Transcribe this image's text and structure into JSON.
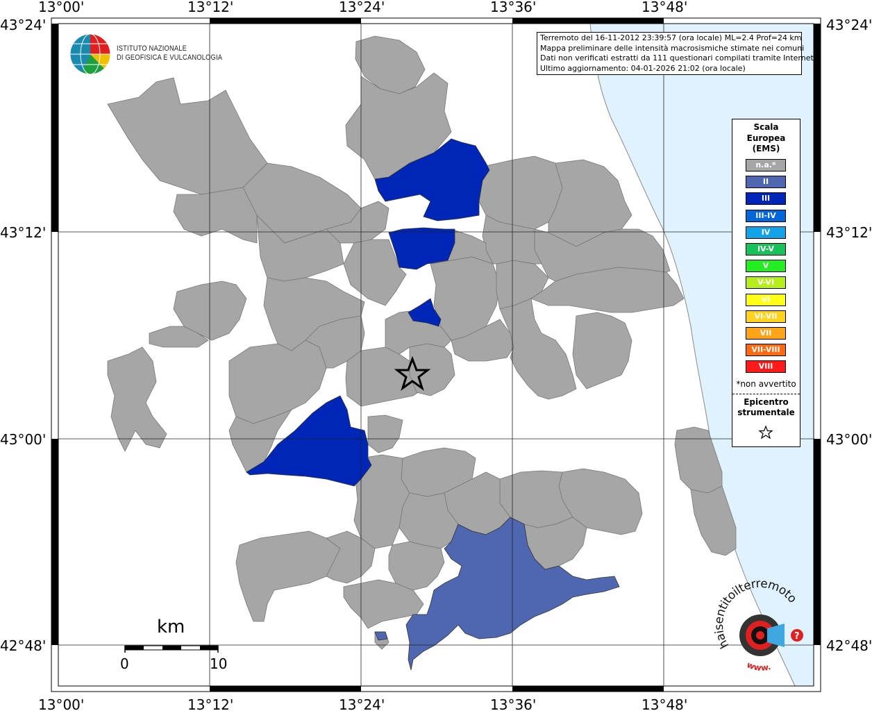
{
  "axes": {
    "lon_labels": [
      "13°00'",
      "13°12'",
      "13°24'",
      "13°36'",
      "13°48'"
    ],
    "lat_labels": [
      "43°24'",
      "43°12'",
      "43°00'",
      "42°48'"
    ]
  },
  "institute": {
    "line1": "ISTITUTO NAZIONALE",
    "line2": "DI GEOFISICA E VULCANOLOGIA"
  },
  "info": {
    "line1": "Terremoto del 16-11-2012 23:39:57 (ora locale) ML=2.4 Prof=24 km",
    "line2": "Mappa preliminare delle intensità macrosismiche stimate nei comuni",
    "line3": "Dati non verificati estratti da 111 questionari compilati tramite Internet.",
    "line4": "Ultimo aggiornamento: 04-01-2026 21:02 (ora locale)"
  },
  "legend": {
    "title_line1": "Scala",
    "title_line2": "Europea",
    "title_line3": "(EMS)",
    "items": [
      {
        "label": "n.a.*",
        "color": "#a6a6a6"
      },
      {
        "label": "II",
        "color": "#4f66b0"
      },
      {
        "label": "III",
        "color": "#0026b8"
      },
      {
        "label": "III-IV",
        "color": "#0066d9"
      },
      {
        "label": "IV",
        "color": "#13a3e8"
      },
      {
        "label": "IV-V",
        "color": "#18c25a"
      },
      {
        "label": "V",
        "color": "#22ee22"
      },
      {
        "label": "V-VI",
        "color": "#b5ee19"
      },
      {
        "label": "VI",
        "color": "#ffff19"
      },
      {
        "label": "VI-VII",
        "color": "#ffd21e"
      },
      {
        "label": "VII",
        "color": "#ffa319"
      },
      {
        "label": "VII-VIII",
        "color": "#ff6a10"
      },
      {
        "label": "VIII",
        "color": "#ff1a1a"
      }
    ],
    "note": "*non avvertito",
    "epicenter_line1": "Epicentro",
    "epicenter_line2": "strumentale"
  },
  "scale_bar": {
    "unit": "km",
    "start": "0",
    "end": "10"
  },
  "colors": {
    "sea": "#e0f2fd",
    "not_felt": "#a6a6a6",
    "intensity_II": "#4f66b0",
    "intensity_III": "#0026b8"
  },
  "badge": {
    "text": "haisentitoilterremoto.it",
    "url_text": "www."
  }
}
